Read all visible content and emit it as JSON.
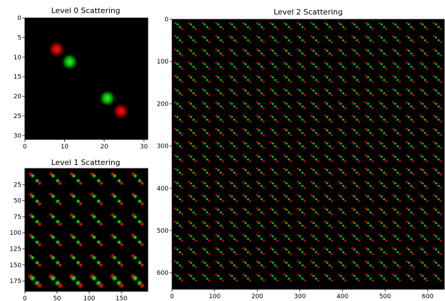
{
  "chart_data": [
    {
      "type": "heatmap",
      "title": "Level 0 Scattering",
      "xlim": [
        0,
        31
      ],
      "ylim": [
        31,
        0
      ],
      "xticks": [
        "0",
        "10",
        "20",
        "30"
      ],
      "yticks": [
        "0",
        "5",
        "10",
        "15",
        "20",
        "25",
        "30"
      ],
      "background": "#000000",
      "channels": [
        {
          "color": "#ff0000",
          "blobs": [
            [
              8,
              8
            ],
            [
              24.2,
              23.8
            ]
          ]
        },
        {
          "color": "#00ff00",
          "blobs": [
            [
              11.3,
              11.2
            ],
            [
              20.8,
              20.5
            ]
          ]
        }
      ]
    },
    {
      "type": "heatmap",
      "title": "Level 1 Scattering",
      "xlim": [
        0,
        191
      ],
      "ylim": [
        191,
        0
      ],
      "xticks": [
        "0",
        "50",
        "100",
        "150"
      ],
      "yticks": [
        "25",
        "50",
        "75",
        "100",
        "125",
        "150",
        "175"
      ],
      "background": "#000000",
      "grid_cells": 6,
      "colors": {
        "red": "#ff0000",
        "green": "#00ff00"
      }
    },
    {
      "type": "heatmap",
      "title": "Level 2 Scattering",
      "xlim": [
        0,
        639
      ],
      "ylim": [
        639,
        0
      ],
      "xticks": [
        "0",
        "100",
        "200",
        "300",
        "400",
        "500",
        "600"
      ],
      "yticks": [
        "0",
        "100",
        "200",
        "300",
        "400",
        "500",
        "600"
      ],
      "background": "#000000",
      "grid_cells": 20,
      "data_extent_y": 627,
      "colors": {
        "red": "#ff0000",
        "green": "#00ff00"
      }
    }
  ]
}
